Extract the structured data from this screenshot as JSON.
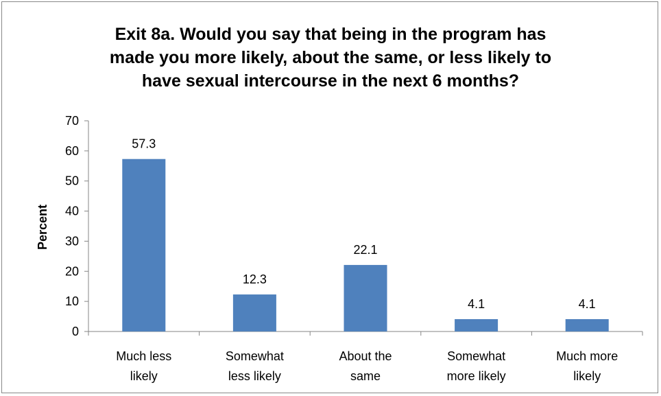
{
  "chart_data": {
    "type": "bar",
    "title_lines": [
      "Exit 8a. Would you say that being in the program has",
      "made you more likely, about the same, or less likely to",
      "have sexual intercourse in the next 6 months?"
    ],
    "xlabel": "",
    "ylabel": "Percent",
    "categories": [
      [
        "Much less",
        "likely"
      ],
      [
        "Somewhat",
        "less likely"
      ],
      [
        "About the",
        "same"
      ],
      [
        "Somewhat",
        "more likely"
      ],
      [
        "Much more",
        "likely"
      ]
    ],
    "values": [
      57.3,
      12.3,
      22.1,
      4.1,
      4.1
    ],
    "data_labels": [
      "57.3",
      "12.3",
      "22.1",
      "4.1",
      "4.1"
    ],
    "ylim": [
      0,
      70
    ],
    "yticks": [
      0,
      10,
      20,
      30,
      40,
      50,
      60,
      70
    ],
    "grid": false,
    "legend": "none",
    "bar_color": "#4f81bd"
  }
}
